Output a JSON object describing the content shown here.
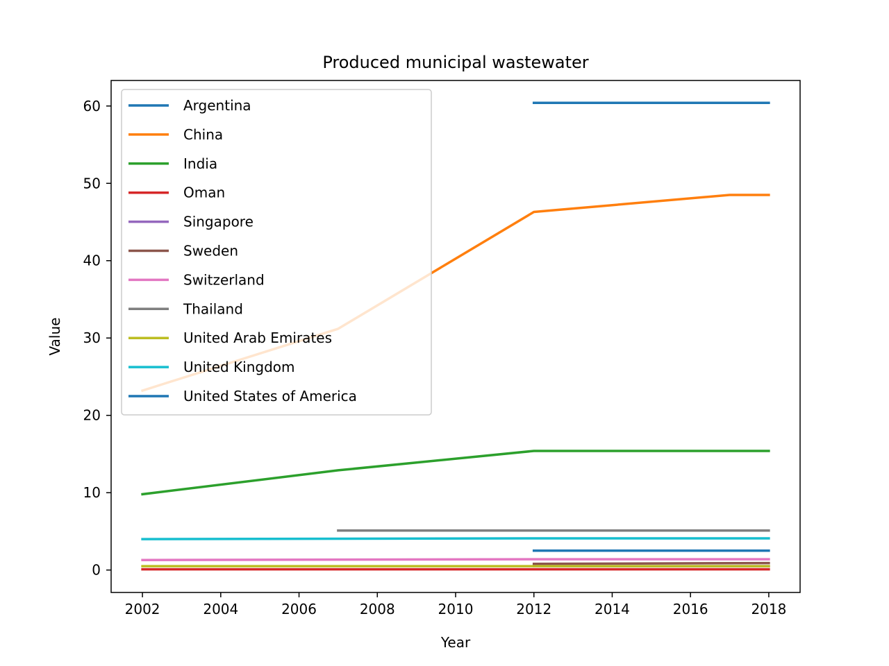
{
  "chart_data": {
    "type": "line",
    "title": "Produced municipal wastewater",
    "xlabel": "Year",
    "ylabel": "Value",
    "xlim": [
      2001.2,
      2018.8
    ],
    "ylim": [
      -2.9,
      63.3
    ],
    "x_ticks": [
      2002,
      2004,
      2006,
      2008,
      2010,
      2012,
      2014,
      2016,
      2018
    ],
    "y_ticks": [
      0,
      10,
      20,
      30,
      40,
      50,
      60
    ],
    "grid": false,
    "legend_position": "upper-left",
    "series": [
      {
        "name": "Argentina",
        "color": "#1f77b4",
        "points": [
          [
            2012,
            2.5
          ],
          [
            2018,
            2.5
          ]
        ]
      },
      {
        "name": "China",
        "color": "#ff7f0e",
        "points": [
          [
            2002,
            23.2
          ],
          [
            2007,
            31.2
          ],
          [
            2012,
            46.3
          ],
          [
            2017,
            48.5
          ],
          [
            2018,
            48.5
          ]
        ]
      },
      {
        "name": "India",
        "color": "#2ca02c",
        "points": [
          [
            2002,
            9.8
          ],
          [
            2007,
            12.9
          ],
          [
            2012,
            15.4
          ],
          [
            2018,
            15.4
          ]
        ]
      },
      {
        "name": "Oman",
        "color": "#d62728",
        "points": [
          [
            2002,
            0.1
          ],
          [
            2018,
            0.1
          ]
        ]
      },
      {
        "name": "Singapore",
        "color": "#9467bd",
        "points": [
          [
            2012,
            0.5
          ],
          [
            2018,
            0.5
          ]
        ]
      },
      {
        "name": "Sweden",
        "color": "#8c564b",
        "points": [
          [
            2012,
            0.8
          ],
          [
            2018,
            0.9
          ]
        ]
      },
      {
        "name": "Switzerland",
        "color": "#e377c2",
        "points": [
          [
            2002,
            1.3
          ],
          [
            2012,
            1.4
          ],
          [
            2018,
            1.4
          ]
        ]
      },
      {
        "name": "Thailand",
        "color": "#7f7f7f",
        "points": [
          [
            2007,
            5.1
          ],
          [
            2018,
            5.1
          ]
        ]
      },
      {
        "name": "United Arab Emirates",
        "color": "#bcbd22",
        "points": [
          [
            2002,
            0.5
          ],
          [
            2018,
            0.5
          ]
        ]
      },
      {
        "name": "United Kingdom",
        "color": "#17becf",
        "points": [
          [
            2002,
            4.0
          ],
          [
            2012,
            4.1
          ],
          [
            2018,
            4.1
          ]
        ]
      },
      {
        "name": "United States of America",
        "color": "#1f77b4",
        "points": [
          [
            2012,
            60.4
          ],
          [
            2018,
            60.4
          ]
        ]
      }
    ]
  }
}
